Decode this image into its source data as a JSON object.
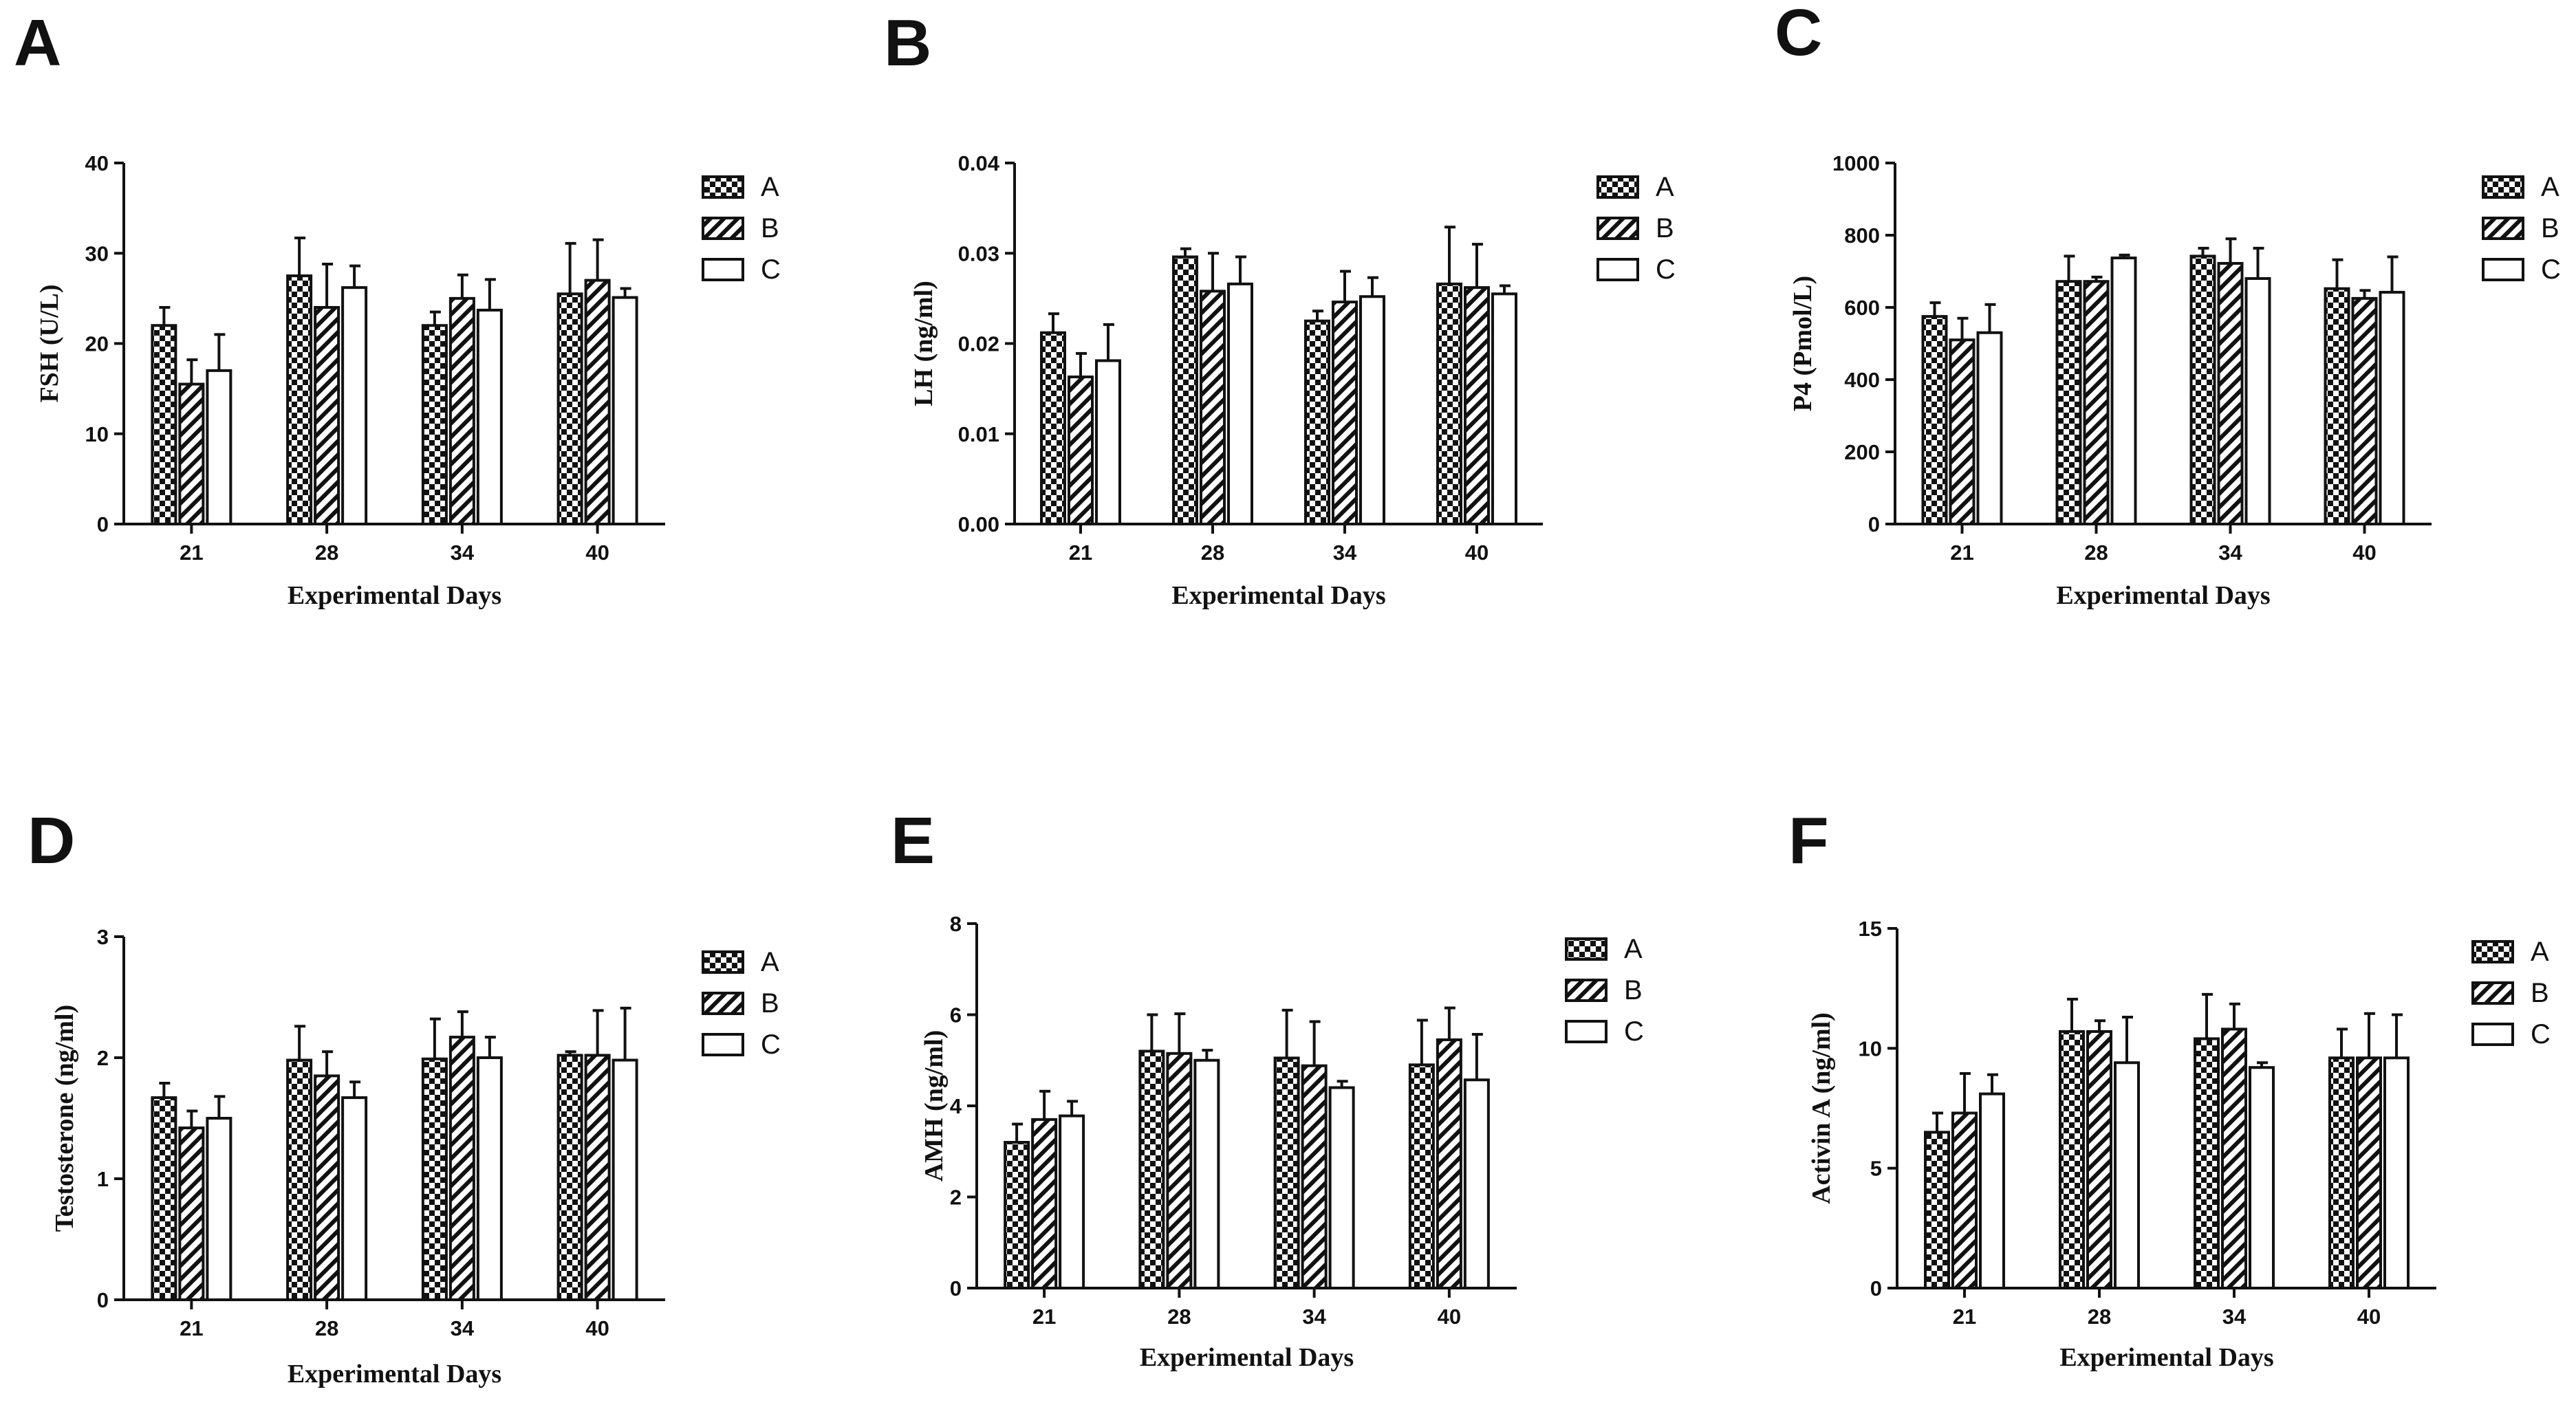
{
  "chart_data": [
    {
      "type": "bar",
      "panel": "A",
      "ylabel": "FSH (U/L)",
      "xlabel": "Experimental Days",
      "categories": [
        "21",
        "28",
        "34",
        "40"
      ],
      "ylim": [
        0,
        40
      ],
      "yticks": [
        0,
        10,
        20,
        30,
        40
      ],
      "ytick_labels": [
        "0",
        "10",
        "20",
        "30",
        "40"
      ],
      "series": [
        {
          "name": "A",
          "values": [
            22,
            27.5,
            22,
            25.5
          ],
          "errors": [
            2,
            4.2,
            1.5,
            5.6
          ]
        },
        {
          "name": "B",
          "values": [
            15.5,
            24,
            25,
            27
          ],
          "errors": [
            2.7,
            4.8,
            2.6,
            4.5
          ]
        },
        {
          "name": "C",
          "values": [
            17,
            26.2,
            23.7,
            25.1
          ],
          "errors": [
            4,
            2.4,
            3.4,
            1
          ]
        }
      ]
    },
    {
      "type": "bar",
      "panel": "B",
      "ylabel": "LH (ng/ml)",
      "xlabel": "Experimental Days",
      "categories": [
        "21",
        "28",
        "34",
        "40"
      ],
      "ylim": [
        0,
        0.04
      ],
      "yticks": [
        0,
        0.01,
        0.02,
        0.03,
        0.04
      ],
      "ytick_labels": [
        "0.00",
        "0.01",
        "0.02",
        "0.03",
        "0.04"
      ],
      "series": [
        {
          "name": "A",
          "values": [
            0.0212,
            0.0296,
            0.0225,
            0.0266
          ],
          "errors": [
            0.0021,
            0.0009,
            0.0011,
            0.0063
          ]
        },
        {
          "name": "B",
          "values": [
            0.0163,
            0.0258,
            0.0246,
            0.0262
          ],
          "errors": [
            0.0026,
            0.0042,
            0.0034,
            0.0048
          ]
        },
        {
          "name": "C",
          "values": [
            0.0181,
            0.0266,
            0.0252,
            0.0255
          ],
          "errors": [
            0.004,
            0.003,
            0.0021,
            0.0009
          ]
        }
      ]
    },
    {
      "type": "bar",
      "panel": "C",
      "ylabel": "P4 (Pmol/L)",
      "xlabel": "Experimental Days",
      "categories": [
        "21",
        "28",
        "34",
        "40"
      ],
      "ylim": [
        0,
        1000
      ],
      "yticks": [
        0,
        200,
        400,
        600,
        800,
        1000
      ],
      "ytick_labels": [
        "0",
        "200",
        "400",
        "600",
        "800",
        "1000"
      ],
      "series": [
        {
          "name": "A",
          "values": [
            575,
            672,
            742,
            652
          ],
          "errors": [
            38,
            70,
            22,
            80
          ]
        },
        {
          "name": "B",
          "values": [
            510,
            672,
            722,
            625
          ],
          "errors": [
            60,
            12,
            68,
            22
          ]
        },
        {
          "name": "C",
          "values": [
            530,
            737,
            680,
            642
          ],
          "errors": [
            78,
            8,
            84,
            98
          ]
        }
      ]
    },
    {
      "type": "bar",
      "panel": "D",
      "ylabel": "Testosterone (ng/ml)",
      "xlabel": "Experimental Days",
      "categories": [
        "21",
        "28",
        "34",
        "40"
      ],
      "ylim": [
        0,
        3
      ],
      "yticks": [
        0,
        1,
        2,
        3
      ],
      "ytick_labels": [
        "0",
        "1",
        "2",
        "3"
      ],
      "series": [
        {
          "name": "A",
          "values": [
            1.67,
            1.98,
            1.99,
            2.02
          ],
          "errors": [
            0.12,
            0.28,
            0.33,
            0.03
          ]
        },
        {
          "name": "B",
          "values": [
            1.42,
            1.85,
            2.17,
            2.02
          ],
          "errors": [
            0.14,
            0.2,
            0.21,
            0.37
          ]
        },
        {
          "name": "C",
          "values": [
            1.5,
            1.67,
            2,
            1.98
          ],
          "errors": [
            0.18,
            0.13,
            0.17,
            0.43
          ]
        }
      ]
    },
    {
      "type": "bar",
      "panel": "E",
      "ylabel": "AMH (ng/ml)",
      "xlabel": "Experimental Days",
      "categories": [
        "21",
        "28",
        "34",
        "40"
      ],
      "ylim": [
        0,
        8
      ],
      "yticks": [
        0,
        2,
        4,
        6,
        8
      ],
      "ytick_labels": [
        "0",
        "2",
        "4",
        "6",
        "8"
      ],
      "series": [
        {
          "name": "A",
          "values": [
            3.2,
            5.2,
            5.05,
            4.9
          ],
          "errors": [
            0.4,
            0.8,
            1.05,
            0.98
          ]
        },
        {
          "name": "B",
          "values": [
            3.7,
            5.15,
            4.88,
            5.45
          ],
          "errors": [
            0.62,
            0.87,
            0.97,
            0.7
          ]
        },
        {
          "name": "C",
          "values": [
            3.78,
            5,
            4.4,
            4.57
          ],
          "errors": [
            0.32,
            0.22,
            0.14,
            1
          ]
        }
      ]
    },
    {
      "type": "bar",
      "panel": "F",
      "ylabel": "Activin A (ng/ml)",
      "xlabel": "Experimental Days",
      "categories": [
        "21",
        "28",
        "34",
        "40"
      ],
      "ylim": [
        0,
        15
      ],
      "yticks": [
        0,
        5,
        10,
        15
      ],
      "ytick_labels": [
        "0",
        "5",
        "10",
        "15"
      ],
      "series": [
        {
          "name": "A",
          "values": [
            6.5,
            10.7,
            10.4,
            9.6
          ],
          "errors": [
            0.8,
            1.35,
            1.85,
            1.2
          ]
        },
        {
          "name": "B",
          "values": [
            7.3,
            10.7,
            10.8,
            9.6
          ],
          "errors": [
            1.65,
            0.45,
            1.05,
            1.85
          ]
        },
        {
          "name": "C",
          "values": [
            8.1,
            9.4,
            9.2,
            9.6
          ],
          "errors": [
            0.8,
            1.9,
            0.2,
            1.8
          ]
        }
      ]
    }
  ],
  "legend_labels": [
    "A",
    "B",
    "C"
  ]
}
